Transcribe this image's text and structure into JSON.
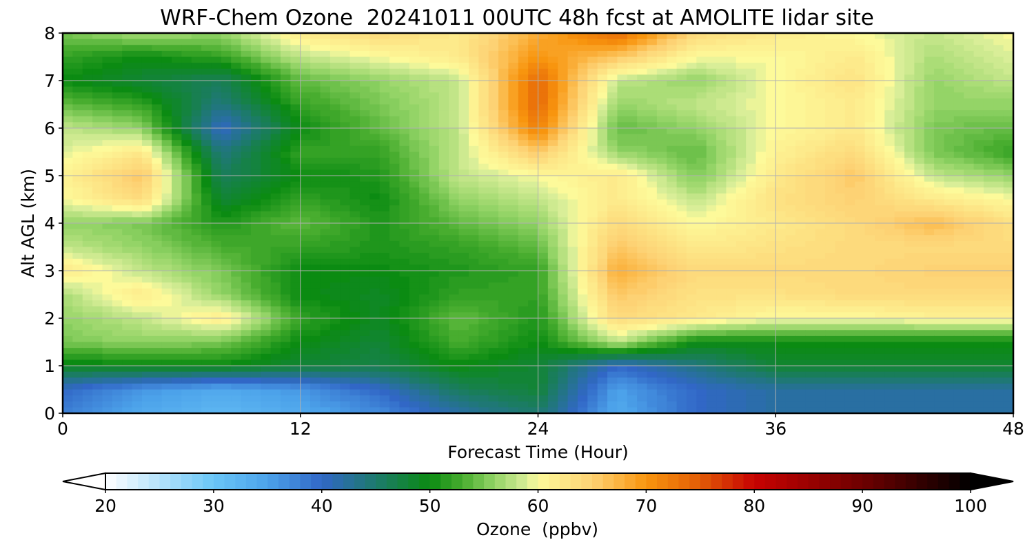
{
  "chart_data": {
    "type": "heatmap",
    "title": "WRF-Chem Ozone  20241011 00UTC 48h fcst at AMOLITE lidar site",
    "xlabel": "Forecast Time (Hour)",
    "ylabel": "Alt AGL (km)",
    "xlim": [
      0,
      48
    ],
    "ylim": [
      0,
      8
    ],
    "xticks": [
      0,
      12,
      24,
      36,
      48
    ],
    "yticks": [
      0,
      1,
      2,
      3,
      4,
      5,
      6,
      7,
      8
    ],
    "grid": true,
    "x_hours": [
      0,
      4,
      8,
      12,
      16,
      20,
      24,
      28,
      32,
      36,
      40,
      44,
      48
    ],
    "y_km": [
      0,
      0.5,
      1,
      1.5,
      2,
      2.5,
      3,
      3.5,
      4,
      4.5,
      5,
      5.5,
      6,
      6.5,
      7,
      7.5,
      8
    ],
    "ozone_ppbv": [
      [
        38,
        34,
        32,
        34,
        37,
        42,
        45,
        34,
        40,
        42,
        42,
        42,
        42
      ],
      [
        40,
        36,
        34,
        36,
        40,
        46,
        48,
        35,
        40,
        42,
        42,
        42,
        42
      ],
      [
        49,
        50,
        50,
        48,
        47,
        50,
        48,
        40,
        44,
        48,
        48,
        48,
        48
      ],
      [
        55,
        56,
        55,
        50,
        48,
        53,
        50,
        58,
        50,
        50,
        50,
        50,
        50
      ],
      [
        56,
        58,
        62,
        52,
        49,
        54,
        51,
        64,
        62,
        60,
        60,
        61,
        61
      ],
      [
        57,
        62,
        56,
        50,
        49,
        52,
        52,
        66,
        63,
        63,
        64,
        64,
        64
      ],
      [
        62,
        58,
        55,
        50,
        50,
        51,
        52,
        68,
        64,
        64,
        64,
        65,
        65
      ],
      [
        58,
        56,
        53,
        52,
        51,
        52,
        54,
        66,
        62,
        63,
        64,
        64,
        64
      ],
      [
        56,
        55,
        51,
        54,
        51,
        54,
        56,
        64,
        60,
        62,
        64,
        67,
        63
      ],
      [
        60,
        64,
        48,
        52,
        50,
        56,
        58,
        62,
        58,
        63,
        65,
        62,
        60
      ],
      [
        61,
        66,
        46,
        50,
        51,
        58,
        60,
        62,
        55,
        62,
        66,
        58,
        56
      ],
      [
        59,
        62,
        44,
        52,
        52,
        58,
        66,
        56,
        54,
        61,
        64,
        55,
        52
      ],
      [
        58,
        56,
        40,
        50,
        54,
        58,
        72,
        54,
        56,
        60,
        62,
        55,
        54
      ],
      [
        54,
        52,
        44,
        52,
        55,
        58,
        74,
        56,
        58,
        60,
        62,
        56,
        56
      ],
      [
        50,
        48,
        46,
        54,
        56,
        58,
        74,
        58,
        56,
        60,
        63,
        56,
        58
      ],
      [
        52,
        50,
        52,
        58,
        60,
        62,
        70,
        66,
        60,
        60,
        62,
        57,
        59
      ],
      [
        55,
        57,
        56,
        62,
        64,
        62,
        68,
        74,
        64,
        62,
        60,
        58,
        60
      ]
    ],
    "colorbar": {
      "label": "Ozone  (ppbv)",
      "min": 20,
      "max": 100,
      "ticks": [
        20,
        30,
        40,
        50,
        60,
        70,
        80,
        90,
        100
      ],
      "extend": "both",
      "colormap_stops": [
        {
          "v": 20,
          "c": "#ffffff"
        },
        {
          "v": 30,
          "c": "#6ac6f7"
        },
        {
          "v": 35,
          "c": "#4ca2ea"
        },
        {
          "v": 40,
          "c": "#3167c6"
        },
        {
          "v": 45,
          "c": "#1d7a6c"
        },
        {
          "v": 50,
          "c": "#0b8b12"
        },
        {
          "v": 53,
          "c": "#48ad2f"
        },
        {
          "v": 56,
          "c": "#94d467"
        },
        {
          "v": 59,
          "c": "#d9ee98"
        },
        {
          "v": 60,
          "c": "#fdfa9a"
        },
        {
          "v": 65,
          "c": "#fdd274"
        },
        {
          "v": 70,
          "c": "#f8950e"
        },
        {
          "v": 75,
          "c": "#e25c06"
        },
        {
          "v": 80,
          "c": "#c70201"
        },
        {
          "v": 90,
          "c": "#6e0000"
        },
        {
          "v": 100,
          "c": "#000000"
        }
      ]
    }
  }
}
